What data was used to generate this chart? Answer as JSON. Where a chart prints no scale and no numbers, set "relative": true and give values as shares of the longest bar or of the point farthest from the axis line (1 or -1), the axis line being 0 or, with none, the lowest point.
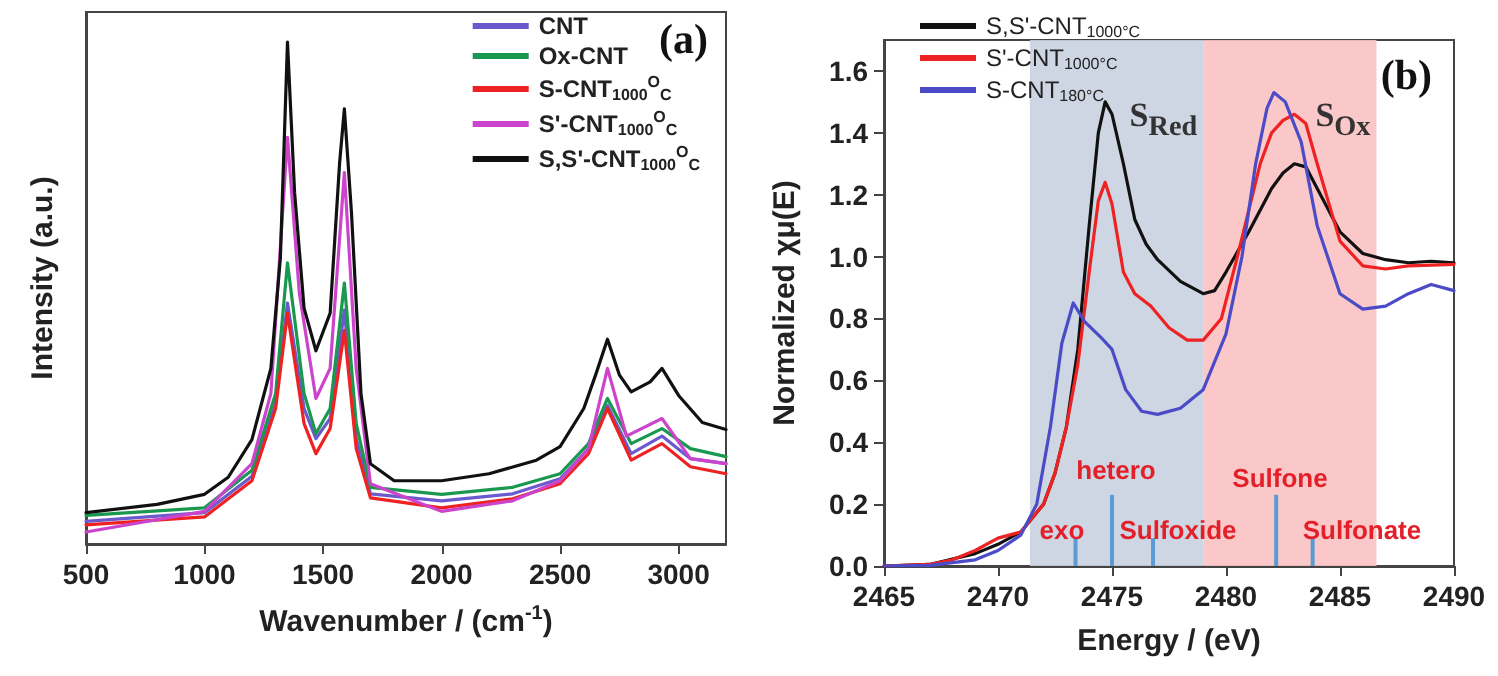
{
  "chart_data": [
    {
      "type": "line",
      "title": "(a)",
      "xlabel": "Wavenumber / (cm$^{-1}$)",
      "ylabel": "Intensity (a.u.)",
      "relative": true,
      "xlim": [
        500,
        3200
      ],
      "xticks": [
        500,
        1000,
        1500,
        2000,
        2500,
        3000
      ],
      "legend": "top right",
      "grid": false,
      "series": [
        {
          "name": "CNT",
          "color": "#6a5acd",
          "x": [
            500,
            1000,
            1200,
            1300,
            1350,
            1420,
            1470,
            1530,
            1590,
            1640,
            1700,
            2000,
            2300,
            2500,
            2620,
            2700,
            2800,
            2930,
            3050,
            3200
          ],
          "values": [
            0.045,
            0.0625,
            0.135,
            0.28,
            0.48,
            0.27,
            0.21,
            0.25,
            0.466,
            0.21,
            0.1,
            0.086,
            0.1,
            0.13,
            0.19,
            0.276,
            0.18,
            0.215,
            0.17,
            0.16
          ]
        },
        {
          "name": "Ox-CNT",
          "color": "#1a9850",
          "x": [
            500,
            1000,
            1200,
            1300,
            1350,
            1420,
            1470,
            1530,
            1590,
            1640,
            1700,
            2000,
            2300,
            2500,
            2620,
            2700,
            2800,
            2930,
            3050,
            3200
          ],
          "values": [
            0.057,
            0.072,
            0.147,
            0.3,
            0.56,
            0.3,
            0.22,
            0.27,
            0.52,
            0.24,
            0.113,
            0.099,
            0.113,
            0.14,
            0.2,
            0.29,
            0.2,
            0.23,
            0.19,
            0.174
          ]
        },
        {
          "name": "S-CNT$_{1000}$$^{O}$$_{C}$",
          "color": "#ee2222",
          "x": [
            500,
            1000,
            1200,
            1300,
            1350,
            1420,
            1470,
            1530,
            1590,
            1640,
            1700,
            2000,
            2300,
            2500,
            2620,
            2700,
            2800,
            2930,
            3050,
            3200
          ],
          "values": [
            0.038,
            0.054,
            0.126,
            0.27,
            0.46,
            0.24,
            0.18,
            0.23,
            0.425,
            0.19,
            0.092,
            0.072,
            0.09,
            0.12,
            0.18,
            0.27,
            0.167,
            0.2,
            0.154,
            0.14
          ]
        },
        {
          "name": "S'-CNT$_{1000}$$^{O}$$_{C}$",
          "color": "#cc44cc",
          "x": [
            500,
            1000,
            1200,
            1280,
            1350,
            1400,
            1470,
            1530,
            1590,
            1640,
            1700,
            2000,
            2300,
            2500,
            2620,
            2700,
            2780,
            2930,
            3050,
            3200
          ],
          "values": [
            0.024,
            0.065,
            0.16,
            0.3,
            0.81,
            0.5,
            0.29,
            0.35,
            0.74,
            0.35,
            0.12,
            0.065,
            0.086,
            0.126,
            0.19,
            0.35,
            0.215,
            0.25,
            0.17,
            0.16
          ]
        },
        {
          "name": "S,S'-CNT$_{1000}$$^{O}$$_{C}$",
          "color": "#111111",
          "x": [
            500,
            800,
            1000,
            1100,
            1200,
            1280,
            1320,
            1350,
            1380,
            1420,
            1470,
            1530,
            1570,
            1590,
            1620,
            1660,
            1700,
            1800,
            2000,
            2200,
            2400,
            2500,
            2600,
            2650,
            2700,
            2750,
            2800,
            2880,
            2930,
            3000,
            3100,
            3200
          ],
          "values": [
            0.0625,
            0.079,
            0.099,
            0.133,
            0.208,
            0.35,
            0.57,
            1,
            0.7,
            0.47,
            0.385,
            0.46,
            0.76,
            0.867,
            0.66,
            0.3,
            0.16,
            0.126,
            0.126,
            0.14,
            0.167,
            0.194,
            0.27,
            0.337,
            0.408,
            0.337,
            0.303,
            0.323,
            0.35,
            0.296,
            0.242,
            0.228
          ]
        }
      ]
    },
    {
      "type": "line",
      "title": "(b)",
      "xlabel": "Energy / (eV)",
      "ylabel": "Normalized χμ(E)",
      "xlim": [
        2465,
        2490
      ],
      "xticks": [
        2465,
        2470,
        2475,
        2480,
        2485,
        2490
      ],
      "ylim": [
        0,
        1.7
      ],
      "yticks": [
        {
          "value": 0,
          "label": "0.0"
        },
        {
          "value": 0.2,
          "label": "0.2"
        },
        {
          "value": 0.4,
          "label": "0.4"
        },
        {
          "value": 0.6,
          "label": "0.6"
        },
        {
          "value": 0.8,
          "label": "0.8"
        },
        {
          "value": 1,
          "label": "1.0"
        },
        {
          "value": 1.2,
          "label": "1.2"
        },
        {
          "value": 1.4,
          "label": "1.4"
        },
        {
          "value": 1.6,
          "label": "1.6"
        }
      ],
      "legend": "top left",
      "grid": false,
      "bands": [
        {
          "axis": "x",
          "from": 2471.4,
          "to": 2479,
          "label": "S$_{Red}$",
          "color": "#c8d2df"
        },
        {
          "axis": "x",
          "from": 2479,
          "to": 2486.6,
          "label": "S$_{Ox}$",
          "color": "#f9c2c2"
        }
      ],
      "annotations": [
        "exo",
        "hetero",
        "Sulfoxide",
        "Sulfone",
        "Sulfonate"
      ],
      "series": [
        {
          "name": "S,S'-CNT$_{1000°C}$",
          "color": "#111111",
          "x": [
            2465,
            2467,
            2469,
            2470,
            2471,
            2472,
            2472.5,
            2473,
            2473.5,
            2474,
            2474.4,
            2474.7,
            2475,
            2475.5,
            2476,
            2476.5,
            2477,
            2478,
            2479,
            2479.5,
            2480,
            2481,
            2482,
            2482.5,
            2483,
            2483.5,
            2484,
            2485,
            2486,
            2487,
            2488,
            2489,
            2490
          ],
          "values": [
            0,
            0.005,
            0.04,
            0.07,
            0.11,
            0.2,
            0.3,
            0.45,
            0.7,
            1.1,
            1.4,
            1.5,
            1.46,
            1.3,
            1.12,
            1.04,
            0.99,
            0.92,
            0.88,
            0.89,
            0.95,
            1.08,
            1.22,
            1.27,
            1.3,
            1.29,
            1.22,
            1.08,
            1.01,
            0.99,
            0.98,
            0.985,
            0.98
          ]
        },
        {
          "name": "S'-CNT$_{1000°C}$",
          "color": "#ee2222",
          "x": [
            2465,
            2467,
            2468,
            2469,
            2470,
            2471,
            2472,
            2472.5,
            2473,
            2473.5,
            2474,
            2474.4,
            2474.7,
            2475,
            2475.5,
            2476,
            2476.7,
            2477.5,
            2478.3,
            2479,
            2479.8,
            2480.5,
            2481,
            2481.5,
            2482,
            2482.5,
            2483,
            2483.5,
            2484,
            2485,
            2486,
            2487,
            2488,
            2490
          ],
          "values": [
            0,
            0.005,
            0.02,
            0.05,
            0.09,
            0.11,
            0.2,
            0.3,
            0.45,
            0.65,
            0.95,
            1.18,
            1.24,
            1.17,
            0.95,
            0.88,
            0.84,
            0.77,
            0.73,
            0.73,
            0.8,
            1,
            1.15,
            1.3,
            1.4,
            1.44,
            1.46,
            1.43,
            1.3,
            1.05,
            0.97,
            0.96,
            0.97,
            0.975
          ]
        },
        {
          "name": "S-CNT$_{180°C}$",
          "color": "#4b4bc8",
          "x": [
            2465,
            2467,
            2469,
            2470,
            2471,
            2471.7,
            2472.3,
            2472.8,
            2473.3,
            2473.8,
            2474.5,
            2475,
            2475.6,
            2476.3,
            2477,
            2478,
            2479,
            2480,
            2480.7,
            2481.3,
            2481.8,
            2482.1,
            2482.6,
            2483.3,
            2484,
            2485,
            2486,
            2487,
            2488,
            2489,
            2490
          ],
          "values": [
            0,
            0.002,
            0.02,
            0.05,
            0.1,
            0.2,
            0.45,
            0.72,
            0.85,
            0.79,
            0.74,
            0.7,
            0.57,
            0.5,
            0.49,
            0.51,
            0.57,
            0.75,
            1,
            1.3,
            1.48,
            1.53,
            1.5,
            1.37,
            1.1,
            0.88,
            0.83,
            0.84,
            0.88,
            0.91,
            0.89
          ]
        },
        {
          "type": "bar",
          "color": "#5b9bd5",
          "x": [
            2473.4,
            2475,
            2476.8,
            2482.2,
            2483.8
          ],
          "values": [
            0.09,
            0.23,
            0.09,
            0.23,
            0.09
          ]
        }
      ]
    }
  ]
}
